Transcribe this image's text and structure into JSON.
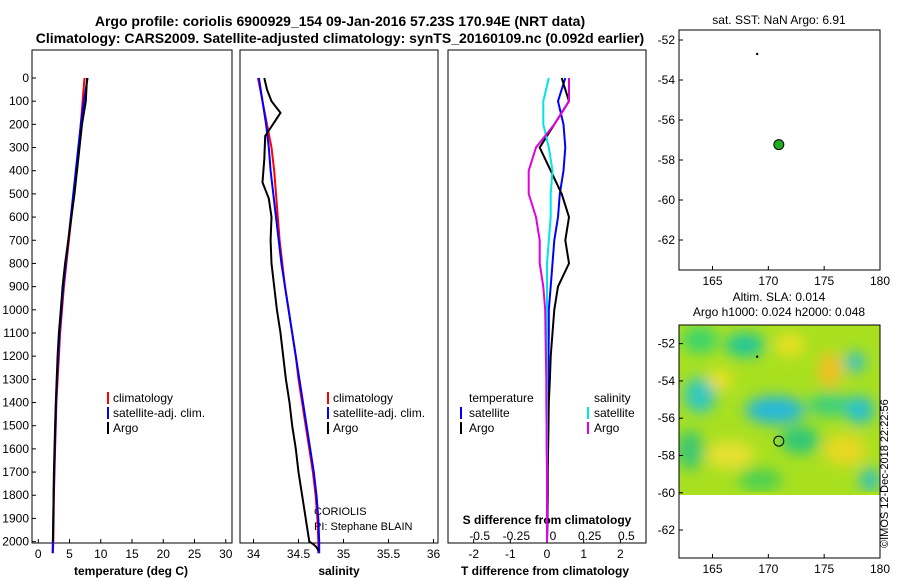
{
  "title_line1": "Argo profile: coriolis 6900929_154 09-Jan-2016 57.23S 170.94E (NRT data)",
  "title_line2": "Climatology: CARS2009. Satellite-adjusted climatology: synTS_20160109.nc (0.092d earlier)",
  "credit": {
    "org": "CORIOLIS",
    "pi": "PI: Stephane BLAIN",
    "watermark": "©IMOS 12-Dec-2018 22:22:56"
  },
  "colors": {
    "climatology": "#ff0000",
    "satellite": "#0000ff",
    "argo": "#000000",
    "sat_temp_diff": "#00e5e5",
    "argo_sal_diff": "#e000e0",
    "float_marker": "#22aa22"
  },
  "chart_data": [
    {
      "type": "line",
      "name": "temperature-profile",
      "xlabel": "temperature (deg C)",
      "ylabel": "",
      "xlim": [
        -1,
        31
      ],
      "ylim": [
        2050,
        0
      ],
      "xticks": [
        0,
        5,
        10,
        15,
        20,
        25,
        30
      ],
      "yticks": [
        0,
        100,
        200,
        300,
        400,
        500,
        600,
        700,
        800,
        900,
        1000,
        1100,
        1200,
        1300,
        1400,
        1500,
        1600,
        1700,
        1800,
        1900,
        2000
      ],
      "legend": {
        "position": "lower-right",
        "entries": [
          "climatology",
          "satellite-adj. clim.",
          "Argo"
        ]
      },
      "series": [
        {
          "name": "climatology",
          "color": "#ff0000",
          "x": [
            7.4,
            7.1,
            6.8,
            6.5,
            6.1,
            5.7,
            5.3,
            4.9,
            4.5,
            4.1,
            3.8,
            3.5,
            3.3,
            3.1,
            2.9,
            2.8,
            2.7,
            2.6,
            2.5,
            2.45,
            2.4,
            2.35
          ],
          "y": [
            0,
            100,
            200,
            300,
            400,
            500,
            600,
            700,
            800,
            900,
            1000,
            1100,
            1200,
            1300,
            1400,
            1500,
            1600,
            1700,
            1800,
            1900,
            2000,
            2050
          ]
        },
        {
          "name": "satellite-adj. clim.",
          "color": "#0000ff",
          "x": [
            7.9,
            7.3,
            6.8,
            6.4,
            6.0,
            5.6,
            5.2,
            4.8,
            4.4,
            4.0,
            3.7,
            3.4,
            3.2,
            3.0,
            2.85,
            2.75,
            2.65,
            2.55,
            2.45,
            2.4,
            2.35,
            2.3
          ],
          "y": [
            0,
            100,
            200,
            300,
            400,
            500,
            600,
            700,
            800,
            900,
            1000,
            1100,
            1200,
            1300,
            1400,
            1500,
            1600,
            1700,
            1800,
            1900,
            2000,
            2050
          ]
        },
        {
          "name": "Argo",
          "color": "#000000",
          "x": [
            7.8,
            7.6,
            7.0,
            6.6,
            6.2,
            5.8,
            5.3,
            4.8,
            4.3,
            3.9,
            3.6,
            3.3,
            3.1,
            2.95,
            2.8,
            2.7,
            2.6,
            2.5,
            2.45,
            2.4,
            2.35
          ],
          "y": [
            0,
            100,
            200,
            300,
            400,
            500,
            600,
            700,
            800,
            900,
            1000,
            1100,
            1200,
            1300,
            1400,
            1500,
            1600,
            1700,
            1800,
            1900,
            2000
          ]
        }
      ]
    },
    {
      "type": "line",
      "name": "salinity-profile",
      "xlabel": "salinity",
      "ylabel": "",
      "xlim": [
        33.85,
        36.05
      ],
      "ylim": [
        2050,
        0
      ],
      "xticks": [
        34,
        34.5,
        35,
        35.5,
        36
      ],
      "legend": {
        "position": "lower-right",
        "entries": [
          "climatology",
          "satellite-adj. clim.",
          "Argo"
        ]
      },
      "series": [
        {
          "name": "climatology",
          "color": "#ff0000",
          "x": [
            34.05,
            34.1,
            34.15,
            34.2,
            34.23,
            34.25,
            34.27,
            34.29,
            34.32,
            34.35,
            34.39,
            34.43,
            34.47,
            34.5,
            34.54,
            34.58,
            34.62,
            34.66,
            34.69,
            34.71,
            34.72,
            34.72
          ],
          "y": [
            0,
            100,
            200,
            300,
            400,
            500,
            600,
            700,
            800,
            900,
            1000,
            1100,
            1200,
            1300,
            1400,
            1500,
            1600,
            1700,
            1800,
            1900,
            2000,
            2050
          ]
        },
        {
          "name": "satellite-adj. clim.",
          "color": "#0000ff",
          "x": [
            34.06,
            34.1,
            34.14,
            34.17,
            34.19,
            34.22,
            34.25,
            34.28,
            34.31,
            34.35,
            34.39,
            34.43,
            34.47,
            34.51,
            34.55,
            34.59,
            34.63,
            34.67,
            34.7,
            34.72,
            34.73,
            34.73
          ],
          "y": [
            0,
            100,
            200,
            300,
            400,
            500,
            600,
            700,
            800,
            900,
            1000,
            1100,
            1200,
            1300,
            1400,
            1500,
            1600,
            1700,
            1800,
            1900,
            2000,
            2050
          ]
        },
        {
          "name": "Argo",
          "color": "#000000",
          "x": [
            34.12,
            34.15,
            34.2,
            34.3,
            34.25,
            34.13,
            34.12,
            34.1,
            34.17,
            34.2,
            34.19,
            34.2,
            34.23,
            34.26,
            34.3,
            34.33,
            34.36,
            34.4,
            34.43,
            34.47,
            34.5,
            34.54,
            34.58,
            34.62,
            34.66,
            34.69,
            34.71,
            34.72
          ],
          "y": [
            0,
            50,
            100,
            150,
            180,
            250,
            350,
            450,
            520,
            600,
            700,
            800,
            900,
            1000,
            1100,
            1200,
            1300,
            1400,
            1500,
            1600,
            1700,
            1800,
            1900,
            2000,
            2010,
            2020,
            2030,
            2040
          ]
        }
      ]
    },
    {
      "type": "line",
      "name": "difference-profile",
      "xlabel": "T difference from climatology",
      "xlabel2": "S difference from climatology",
      "ylabel": "",
      "xlim": [
        -2.7,
        2.7
      ],
      "ylim": [
        2050,
        0
      ],
      "xticks": [
        -2,
        -1,
        0,
        1,
        2
      ],
      "xticks2": [
        "-0.5",
        "-0.25",
        "0",
        "0.25",
        "0.5"
      ],
      "legend": {
        "position": "lower",
        "entries_left": [
          "temperature",
          "satellite",
          "Argo"
        ],
        "entries_right": [
          "salinity",
          "satellite",
          "Argo"
        ]
      },
      "series": [
        {
          "name": "satellite",
          "color": "#0000ff",
          "x": [
            0.5,
            0.3,
            0.45,
            0.5,
            0.45,
            0.35,
            0.3,
            0.2,
            0.15,
            0.1,
            0.05,
            0.05,
            0.04,
            0.03,
            0.02,
            0.02,
            0.01,
            0.01,
            0.01,
            0.01,
            0.0
          ],
          "y": [
            0,
            100,
            200,
            300,
            400,
            500,
            600,
            700,
            800,
            900,
            1000,
            1100,
            1200,
            1300,
            1400,
            1500,
            1600,
            1700,
            1800,
            1900,
            2000
          ]
        },
        {
          "name": "Argo",
          "color": "#000000",
          "x": [
            0.4,
            0.6,
            0.2,
            -0.2,
            0.1,
            0.4,
            0.6,
            0.5,
            0.6,
            0.3,
            0.2,
            0.15,
            0.1,
            0.08,
            0.05,
            0.04,
            0.03,
            0.02,
            0.02,
            0.01,
            0.0
          ],
          "y": [
            0,
            100,
            200,
            300,
            400,
            500,
            600,
            700,
            800,
            900,
            1000,
            1100,
            1200,
            1300,
            1400,
            1500,
            1600,
            1700,
            1800,
            1900,
            2000
          ]
        },
        {
          "name": "satellite",
          "color": "#00e5e5",
          "x": [
            0.05,
            -0.1,
            -0.1,
            0.05,
            0.15,
            0.1,
            0.1,
            0.05,
            0.0,
            0.0,
            0.0,
            0.0,
            0.0,
            0.0,
            0.0,
            0.0,
            0.0,
            0.0,
            0.0,
            0.0,
            0.0
          ],
          "y": [
            0,
            100,
            200,
            300,
            400,
            500,
            600,
            700,
            800,
            900,
            1000,
            1100,
            1200,
            1300,
            1400,
            1500,
            1600,
            1700,
            1800,
            1900,
            2000
          ]
        },
        {
          "name": "Argo",
          "color": "#e000e0",
          "x": [
            0.6,
            0.6,
            0.2,
            -0.3,
            -0.5,
            -0.5,
            -0.3,
            -0.2,
            -0.2,
            -0.1,
            -0.05,
            -0.04,
            -0.03,
            -0.02,
            -0.02,
            -0.01,
            -0.01,
            0.0,
            0.0,
            0.0,
            0.0
          ],
          "y": [
            0,
            100,
            200,
            300,
            400,
            500,
            600,
            700,
            800,
            900,
            1000,
            1100,
            1200,
            1300,
            1400,
            1500,
            1600,
            1700,
            1800,
            1900,
            2000
          ]
        }
      ]
    },
    {
      "type": "scatter",
      "name": "sst-map",
      "title": "sat. SST: NaN Argo: 6.91",
      "xlim": [
        162,
        180
      ],
      "ylim": [
        -63.5,
        -51.5
      ],
      "xticks": [
        165,
        170,
        175,
        180
      ],
      "yticks": [
        -52,
        -54,
        -56,
        -58,
        -60,
        -62
      ],
      "points": [
        {
          "x": 170.94,
          "y": -57.23,
          "marker": "float"
        },
        {
          "x": 169,
          "y": -52.7,
          "marker": "dot"
        }
      ]
    },
    {
      "type": "heatmap",
      "name": "sla-map",
      "title": "Altim. SLA: 0.014",
      "subtitle": "Argo h1000: 0.024 h2000: 0.048",
      "xlim": [
        162,
        180
      ],
      "ylim": [
        -63.5,
        -51
      ],
      "xticks": [
        165,
        170,
        175,
        180
      ],
      "yticks": [
        -52,
        -54,
        -56,
        -58,
        -60,
        -62
      ],
      "points": [
        {
          "x": 170.94,
          "y": -57.23,
          "marker": "float"
        },
        {
          "x": 169,
          "y": -52.7,
          "marker": "dot"
        }
      ]
    }
  ]
}
